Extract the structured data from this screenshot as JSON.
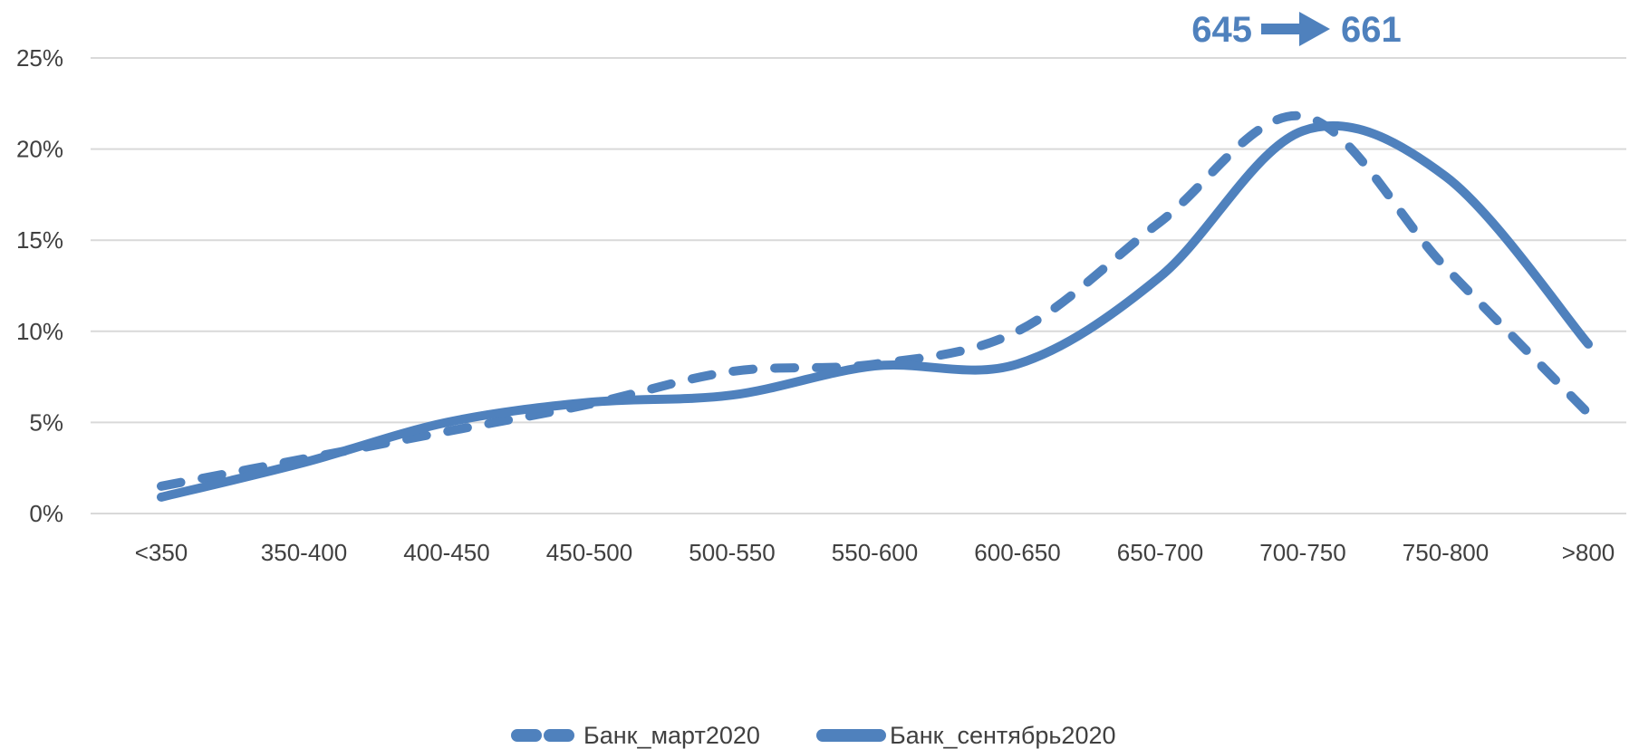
{
  "chart_data": {
    "type": "line",
    "categories": [
      "<350",
      "350-400",
      "400-450",
      "450-500",
      "500-550",
      "550-600",
      "600-650",
      "650-700",
      "700-750",
      "750-800",
      ">800"
    ],
    "series": [
      {
        "name": "Банк_март2020",
        "style": "dashed",
        "values": [
          1.5,
          3.0,
          4.5,
          6.0,
          7.8,
          8.2,
          10.0,
          16.0,
          21.8,
          13.5,
          5.5
        ]
      },
      {
        "name": "Банк_сентябрь2020",
        "style": "solid",
        "values": [
          0.9,
          2.8,
          5.0,
          6.1,
          6.5,
          8.1,
          8.2,
          13.0,
          21.0,
          18.5,
          9.3
        ]
      }
    ],
    "yticks": [
      "0%",
      "5%",
      "10%",
      "15%",
      "20%",
      "25%"
    ],
    "ylim": [
      0,
      25
    ],
    "grid": true,
    "legend_position": "bottom",
    "annotation": {
      "from": "645",
      "to": "661"
    },
    "colors": {
      "series": "#4f81bd",
      "grid": "#d9d9d9",
      "text": "#404040"
    }
  }
}
